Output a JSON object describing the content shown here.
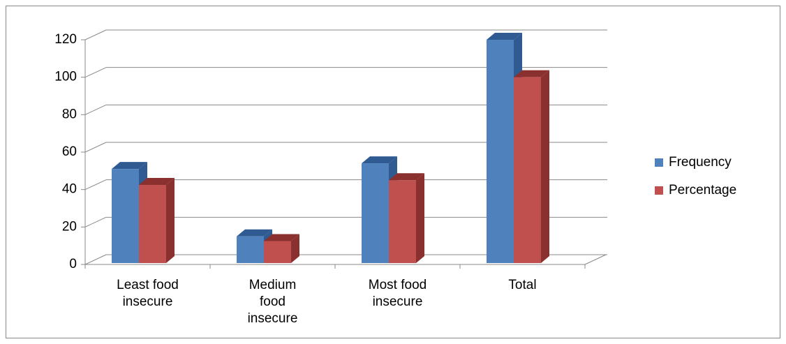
{
  "chart_data": {
    "type": "bar3d",
    "categories": [
      "Least food insecure",
      "Medium food insecure",
      "Most food insecure",
      "Total"
    ],
    "series": [
      {
        "name": "Frequency",
        "color": "#4f81bd",
        "side": "#2f5a92",
        "values": [
          51,
          15,
          54,
          120
        ]
      },
      {
        "name": "Percentage",
        "color": "#c0504d",
        "side": "#8a302e",
        "values": [
          42.5,
          12.5,
          45,
          100
        ]
      }
    ],
    "ylim": [
      0,
      120
    ],
    "yticks": [
      0,
      20,
      40,
      60,
      80,
      100,
      120
    ],
    "grid": true,
    "legend": "right"
  }
}
